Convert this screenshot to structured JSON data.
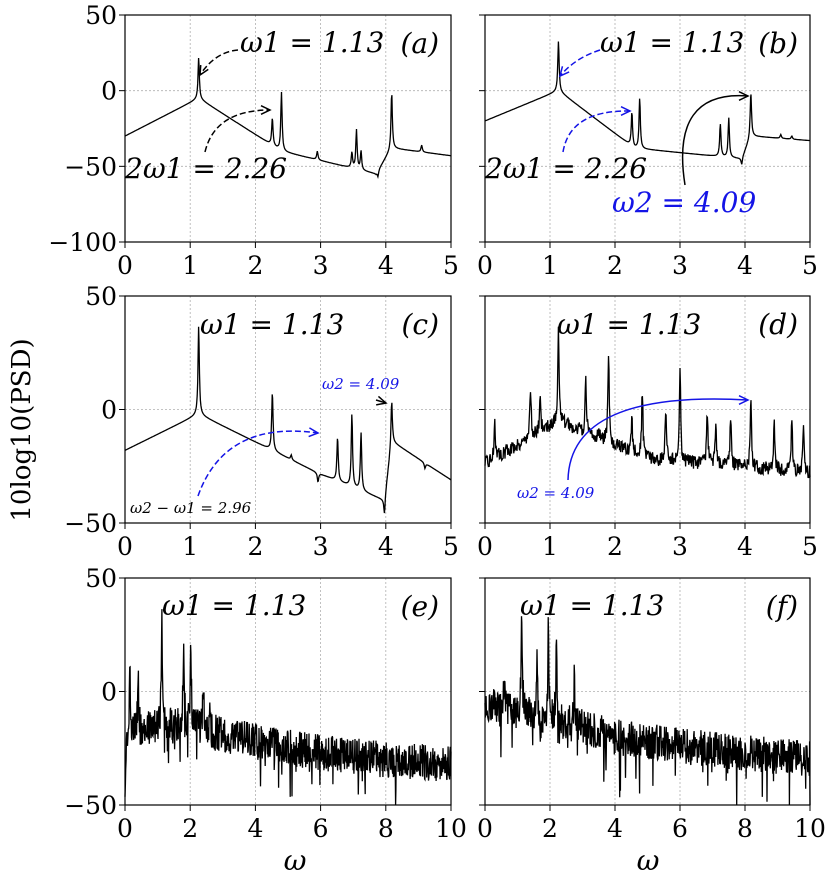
{
  "figure": {
    "ylabel": "10log10(PSD)",
    "xlabel": "ω"
  },
  "chart_data": [
    {
      "type": "line",
      "panel_label": "(a)",
      "xlim": [
        0,
        5
      ],
      "ylim": [
        -100,
        50
      ],
      "xticks": [
        "0",
        "1",
        "2",
        "3",
        "4",
        "5"
      ],
      "yticks": [
        "50",
        "0",
        "−50",
        "−100"
      ],
      "grid": true,
      "annotations": [
        "ω1 = 1.13",
        "2ω1 = 2.26"
      ],
      "peaks": [
        {
          "x": 1.13,
          "y": 22
        },
        {
          "x": 2.26,
          "y": -18
        },
        {
          "x": 2.4,
          "y": -1
        },
        {
          "x": 2.95,
          "y": -40
        },
        {
          "x": 3.48,
          "y": -41
        },
        {
          "x": 3.55,
          "y": -26
        },
        {
          "x": 3.62,
          "y": -40
        },
        {
          "x": 3.88,
          "y": -57
        },
        {
          "x": 4.09,
          "y": -1
        },
        {
          "x": 4.55,
          "y": -36
        }
      ],
      "baseline": {
        "x": [
          0,
          1.13,
          2.4,
          3.85,
          4.09,
          5
        ],
        "y": [
          -30,
          -5,
          -40,
          -55,
          -38,
          -43
        ]
      }
    },
    {
      "type": "line",
      "panel_label": "(b)",
      "xlim": [
        0,
        5
      ],
      "ylim": [
        -100,
        50
      ],
      "xticks": [
        "0",
        "1",
        "2",
        "3",
        "4",
        "5"
      ],
      "yticks": [],
      "grid": true,
      "annotations": [
        "ω1 = 1.13",
        "2ω1 = 2.26",
        "ω2 = 4.09"
      ],
      "peaks": [
        {
          "x": 1.13,
          "y": 33
        },
        {
          "x": 2.26,
          "y": -14
        },
        {
          "x": 2.38,
          "y": -5
        },
        {
          "x": 3.62,
          "y": -22
        },
        {
          "x": 3.75,
          "y": -18
        },
        {
          "x": 3.95,
          "y": -49
        },
        {
          "x": 4.09,
          "y": -1
        },
        {
          "x": 4.55,
          "y": -29
        },
        {
          "x": 4.72,
          "y": -30
        }
      ],
      "baseline": {
        "x": [
          0,
          1.13,
          2.3,
          3.95,
          4.09,
          5
        ],
        "y": [
          -20,
          0,
          -38,
          -45,
          -30,
          -33
        ]
      }
    },
    {
      "type": "line",
      "panel_label": "(c)",
      "xlim": [
        0,
        5
      ],
      "ylim": [
        -50,
        50
      ],
      "xticks": [
        "0",
        "1",
        "2",
        "3",
        "4",
        "5"
      ],
      "yticks": [
        "50",
        "0",
        "−50"
      ],
      "grid": true,
      "annotations": [
        "ω1 = 1.13",
        "ω2 = 4.09",
        "ω2 − ω1 = 2.96"
      ],
      "peaks": [
        {
          "x": 1.13,
          "y": 37
        },
        {
          "x": 2.26,
          "y": 8
        },
        {
          "x": 2.55,
          "y": -20
        },
        {
          "x": 2.96,
          "y": -32
        },
        {
          "x": 3.26,
          "y": -12
        },
        {
          "x": 3.48,
          "y": -2
        },
        {
          "x": 3.62,
          "y": -10
        },
        {
          "x": 3.98,
          "y": -46
        },
        {
          "x": 4.09,
          "y": 4
        },
        {
          "x": 4.6,
          "y": -26
        }
      ],
      "baseline": {
        "x": [
          0,
          1.13,
          2.26,
          2.96,
          3.98,
          4.09,
          5
        ],
        "y": [
          -18,
          -2,
          -18,
          -28,
          -40,
          -14,
          -31
        ]
      }
    },
    {
      "type": "line",
      "panel_label": "(d)",
      "xlim": [
        0,
        5
      ],
      "ylim": [
        -50,
        50
      ],
      "xticks": [
        "0",
        "1",
        "2",
        "3",
        "4",
        "5"
      ],
      "yticks": [],
      "grid": true,
      "annotations": [
        "ω1 = 1.13",
        "ω2 = 4.09"
      ],
      "peaks": [
        {
          "x": 0.15,
          "y": -5
        },
        {
          "x": 0.7,
          "y": 10
        },
        {
          "x": 0.85,
          "y": 5
        },
        {
          "x": 1.13,
          "y": 36
        },
        {
          "x": 1.55,
          "y": 12
        },
        {
          "x": 1.75,
          "y": -8
        },
        {
          "x": 1.9,
          "y": 25
        },
        {
          "x": 2.26,
          "y": -5
        },
        {
          "x": 2.42,
          "y": 8
        },
        {
          "x": 2.78,
          "y": -1
        },
        {
          "x": 3.0,
          "y": 18
        },
        {
          "x": 3.42,
          "y": -1
        },
        {
          "x": 3.55,
          "y": -6
        },
        {
          "x": 3.78,
          "y": -3
        },
        {
          "x": 4.09,
          "y": 4
        },
        {
          "x": 4.45,
          "y": -5
        },
        {
          "x": 4.72,
          "y": -3
        },
        {
          "x": 4.9,
          "y": -8
        }
      ],
      "baseline": {
        "x": [
          0,
          1.13,
          2.5,
          3.5,
          5
        ],
        "y": [
          -24,
          -5,
          -22,
          -24,
          -28
        ]
      }
    },
    {
      "type": "line",
      "panel_label": "(e)",
      "xlim": [
        0,
        10
      ],
      "ylim": [
        -50,
        50
      ],
      "xticks": [
        "0",
        "2",
        "4",
        "6",
        "8",
        "10"
      ],
      "yticks": [
        "50",
        "0",
        "−50"
      ],
      "grid": true,
      "annotations": [
        "ω1 = 1.13"
      ],
      "spikes": [
        {
          "x": 0.0,
          "y": -46
        },
        {
          "x": 0.15,
          "y": 6
        },
        {
          "x": 0.4,
          "y": 7
        },
        {
          "x": 1.13,
          "y": 34
        },
        {
          "x": 1.8,
          "y": 28
        },
        {
          "x": 2.02,
          "y": 20
        },
        {
          "x": 2.4,
          "y": 4
        },
        {
          "x": 2.6,
          "y": -12
        }
      ],
      "trend": {
        "x": [
          0,
          1,
          2,
          4,
          6,
          8,
          10
        ],
        "y": [
          -20,
          -15,
          -16,
          -22,
          -27,
          -30,
          -32
        ]
      }
    },
    {
      "type": "line",
      "panel_label": "(f)",
      "xlim": [
        0,
        10
      ],
      "ylim": [
        -50,
        50
      ],
      "xticks": [
        "0",
        "2",
        "4",
        "6",
        "8",
        "10"
      ],
      "yticks": [],
      "grid": true,
      "annotations": [
        "ω1 = 1.13"
      ],
      "spikes": [
        {
          "x": 1.13,
          "y": 32
        },
        {
          "x": 1.95,
          "y": 29
        },
        {
          "x": 2.2,
          "y": 22
        },
        {
          "x": 0.6,
          "y": 10
        },
        {
          "x": 1.6,
          "y": 14
        },
        {
          "x": 2.75,
          "y": 6
        }
      ],
      "trend": {
        "x": [
          0,
          1,
          2,
          4,
          6,
          8,
          10
        ],
        "y": [
          -5,
          -8,
          -12,
          -20,
          -24,
          -27,
          -30
        ]
      }
    }
  ]
}
